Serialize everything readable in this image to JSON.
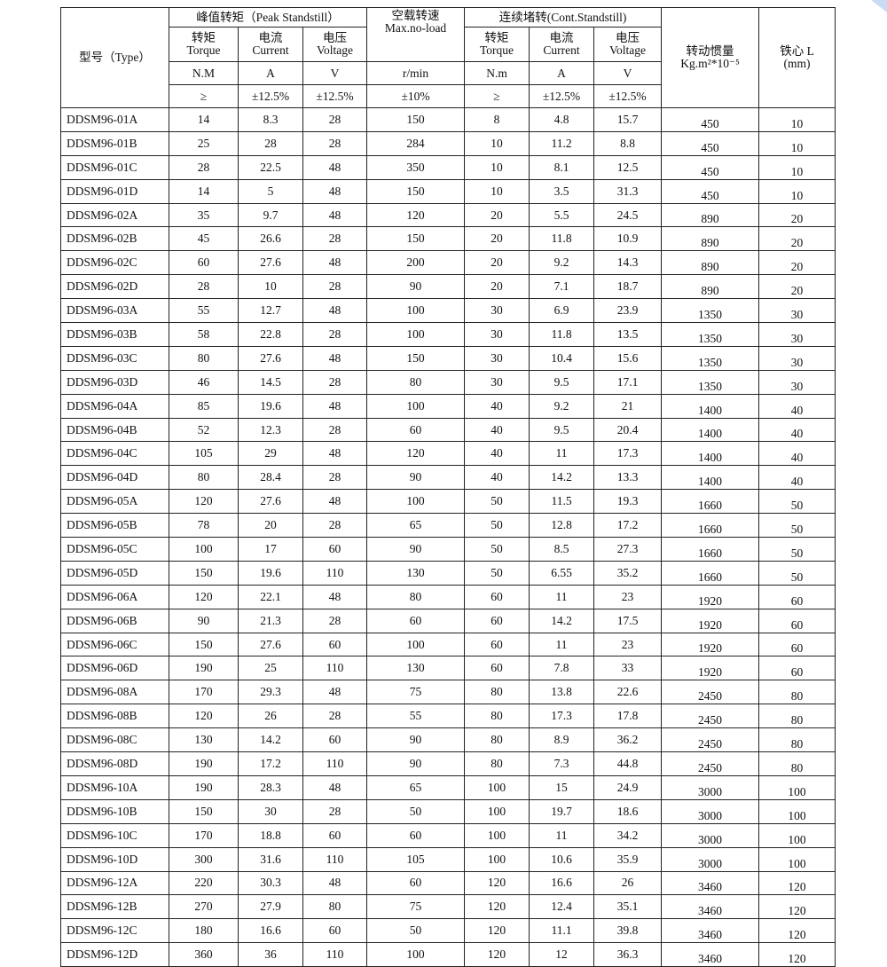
{
  "header": {
    "type": "型号（Type）",
    "peak": "峰值转矩（Peak Standstill）",
    "noload_cn": "空载转速",
    "noload_en": "Max.no-load",
    "cont": "连续堵转(Cont.Standstill)",
    "torque_cn": "转矩",
    "torque_en": "Torque",
    "current_cn": "电流",
    "current_en": "Current",
    "voltage_cn": "电压",
    "voltage_en": "Voltage",
    "inertia_cn": "转动惯量",
    "inertia_en": "Kg.m²*10⁻⁵",
    "core_cn": "铁心 L",
    "core_en": "(mm)",
    "unit_nm": "N.M",
    "unit_a": "A",
    "unit_v": "V",
    "unit_rpm": "r/min",
    "unit_nm2": "N.m",
    "tol_ge": "≥",
    "tol_125": "±12.5%",
    "tol_10": "±10%"
  },
  "rows": [
    [
      "DDSM96-01A",
      "14",
      "8.3",
      "28",
      "150",
      "8",
      "4.8",
      "15.7",
      "450",
      "10"
    ],
    [
      "DDSM96-01B",
      "25",
      "28",
      "28",
      "284",
      "10",
      "11.2",
      "8.8",
      "450",
      "10"
    ],
    [
      "DDSM96-01C",
      "28",
      "22.5",
      "48",
      "350",
      "10",
      "8.1",
      "12.5",
      "450",
      "10"
    ],
    [
      "DDSM96-01D",
      "14",
      "5",
      "48",
      "150",
      "10",
      "3.5",
      "31.3",
      "450",
      "10"
    ],
    [
      "DDSM96-02A",
      "35",
      "9.7",
      "48",
      "120",
      "20",
      "5.5",
      "24.5",
      "890",
      "20"
    ],
    [
      "DDSM96-02B",
      "45",
      "26.6",
      "28",
      "150",
      "20",
      "11.8",
      "10.9",
      "890",
      "20"
    ],
    [
      "DDSM96-02C",
      "60",
      "27.6",
      "48",
      "200",
      "20",
      "9.2",
      "14.3",
      "890",
      "20"
    ],
    [
      "DDSM96-02D",
      "28",
      "10",
      "28",
      "90",
      "20",
      "7.1",
      "18.7",
      "890",
      "20"
    ],
    [
      "DDSM96-03A",
      "55",
      "12.7",
      "48",
      "100",
      "30",
      "6.9",
      "23.9",
      "1350",
      "30"
    ],
    [
      "DDSM96-03B",
      "58",
      "22.8",
      "28",
      "100",
      "30",
      "11.8",
      "13.5",
      "1350",
      "30"
    ],
    [
      "DDSM96-03C",
      "80",
      "27.6",
      "48",
      "150",
      "30",
      "10.4",
      "15.6",
      "1350",
      "30"
    ],
    [
      "DDSM96-03D",
      "46",
      "14.5",
      "28",
      "80",
      "30",
      "9.5",
      "17.1",
      "1350",
      "30"
    ],
    [
      "DDSM96-04A",
      "85",
      "19.6",
      "48",
      "100",
      "40",
      "9.2",
      "21",
      "1400",
      "40"
    ],
    [
      "DDSM96-04B",
      "52",
      "12.3",
      "28",
      "60",
      "40",
      "9.5",
      "20.4",
      "1400",
      "40"
    ],
    [
      "DDSM96-04C",
      "105",
      "29",
      "48",
      "120",
      "40",
      "11",
      "17.3",
      "1400",
      "40"
    ],
    [
      "DDSM96-04D",
      "80",
      "28.4",
      "28",
      "90",
      "40",
      "14.2",
      "13.3",
      "1400",
      "40"
    ],
    [
      "DDSM96-05A",
      "120",
      "27.6",
      "48",
      "100",
      "50",
      "11.5",
      "19.3",
      "1660",
      "50"
    ],
    [
      "DDSM96-05B",
      "78",
      "20",
      "28",
      "65",
      "50",
      "12.8",
      "17.2",
      "1660",
      "50"
    ],
    [
      "DDSM96-05C",
      "100",
      "17",
      "60",
      "90",
      "50",
      "8.5",
      "27.3",
      "1660",
      "50"
    ],
    [
      "DDSM96-05D",
      "150",
      "19.6",
      "110",
      "130",
      "50",
      "6.55",
      "35.2",
      "1660",
      "50"
    ],
    [
      "DDSM96-06A",
      "120",
      "22.1",
      "48",
      "80",
      "60",
      "11",
      "23",
      "1920",
      "60"
    ],
    [
      "DDSM96-06B",
      "90",
      "21.3",
      "28",
      "60",
      "60",
      "14.2",
      "17.5",
      "1920",
      "60"
    ],
    [
      "DDSM96-06C",
      "150",
      "27.6",
      "60",
      "100",
      "60",
      "11",
      "23",
      "1920",
      "60"
    ],
    [
      "DDSM96-06D",
      "190",
      "25",
      "110",
      "130",
      "60",
      "7.8",
      "33",
      "1920",
      "60"
    ],
    [
      "DDSM96-08A",
      "170",
      "29.3",
      "48",
      "75",
      "80",
      "13.8",
      "22.6",
      "2450",
      "80"
    ],
    [
      "DDSM96-08B",
      "120",
      "26",
      "28",
      "55",
      "80",
      "17.3",
      "17.8",
      "2450",
      "80"
    ],
    [
      "DDSM96-08C",
      "130",
      "14.2",
      "60",
      "90",
      "80",
      "8.9",
      "36.2",
      "2450",
      "80"
    ],
    [
      "DDSM96-08D",
      "190",
      "17.2",
      "110",
      "90",
      "80",
      "7.3",
      "44.8",
      "2450",
      "80"
    ],
    [
      "DDSM96-10A",
      "190",
      "28.3",
      "48",
      "65",
      "100",
      "15",
      "24.9",
      "3000",
      "100"
    ],
    [
      "DDSM96-10B",
      "150",
      "30",
      "28",
      "50",
      "100",
      "19.7",
      "18.6",
      "3000",
      "100"
    ],
    [
      "DDSM96-10C",
      "170",
      "18.8",
      "60",
      "60",
      "100",
      "11",
      "34.2",
      "3000",
      "100"
    ],
    [
      "DDSM96-10D",
      "300",
      "31.6",
      "110",
      "105",
      "100",
      "10.6",
      "35.9",
      "3000",
      "100"
    ],
    [
      "DDSM96-12A",
      "220",
      "30.3",
      "48",
      "60",
      "120",
      "16.6",
      "26",
      "3460",
      "120"
    ],
    [
      "DDSM96-12B",
      "270",
      "27.9",
      "80",
      "75",
      "120",
      "12.4",
      "35.1",
      "3460",
      "120"
    ],
    [
      "DDSM96-12C",
      "180",
      "16.6",
      "60",
      "50",
      "120",
      "11.1",
      "39.8",
      "3460",
      "120"
    ],
    [
      "DDSM96-12D",
      "360",
      "36",
      "110",
      "100",
      "120",
      "12",
      "36.3",
      "3460",
      "120"
    ]
  ]
}
